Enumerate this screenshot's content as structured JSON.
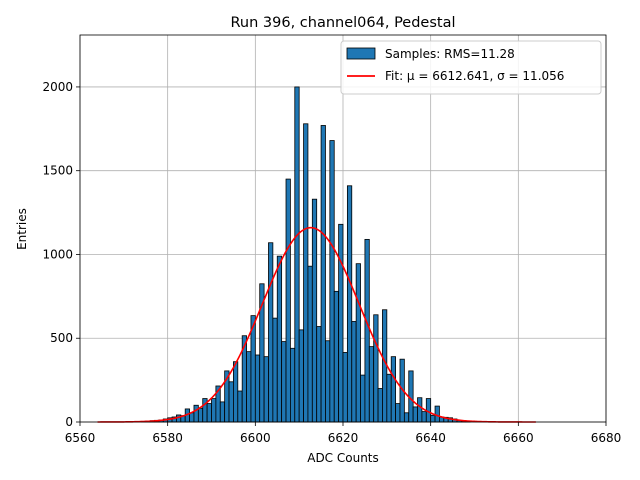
{
  "chart_data": {
    "type": "bar",
    "title": "Run 396, channel064, Pedestal",
    "xlabel": "ADC Counts",
    "ylabel": "Entries",
    "xlim": [
      6560,
      6680
    ],
    "ylim": [
      0,
      2310
    ],
    "grid": true,
    "x_ticks": [
      6560,
      6580,
      6600,
      6620,
      6640,
      6660,
      6680
    ],
    "y_ticks": [
      0,
      500,
      1000,
      1500,
      2000
    ],
    "bin_width": 1,
    "bins": [
      [
        6574,
        4
      ],
      [
        6575,
        6
      ],
      [
        6576,
        8
      ],
      [
        6577,
        10
      ],
      [
        6578,
        12
      ],
      [
        6579,
        18
      ],
      [
        6580,
        25
      ],
      [
        6581,
        30
      ],
      [
        6582,
        42
      ],
      [
        6583,
        38
      ],
      [
        6584,
        78
      ],
      [
        6585,
        55
      ],
      [
        6586,
        100
      ],
      [
        6587,
        82
      ],
      [
        6588,
        140
      ],
      [
        6589,
        110
      ],
      [
        6590,
        140
      ],
      [
        6591,
        215
      ],
      [
        6592,
        120
      ],
      [
        6593,
        305
      ],
      [
        6594,
        240
      ],
      [
        6595,
        360
      ],
      [
        6596,
        185
      ],
      [
        6597,
        515
      ],
      [
        6598,
        420
      ],
      [
        6599,
        635
      ],
      [
        6600,
        400
      ],
      [
        6601,
        825
      ],
      [
        6602,
        390
      ],
      [
        6603,
        1070
      ],
      [
        6604,
        620
      ],
      [
        6605,
        990
      ],
      [
        6606,
        480
      ],
      [
        6607,
        1450
      ],
      [
        6608,
        440
      ],
      [
        6609,
        2000
      ],
      [
        6610,
        550
      ],
      [
        6611,
        1780
      ],
      [
        6612,
        930
      ],
      [
        6613,
        1330
      ],
      [
        6614,
        570
      ],
      [
        6615,
        1770
      ],
      [
        6616,
        485
      ],
      [
        6617,
        1680
      ],
      [
        6618,
        780
      ],
      [
        6619,
        1180
      ],
      [
        6620,
        415
      ],
      [
        6621,
        1410
      ],
      [
        6622,
        600
      ],
      [
        6623,
        945
      ],
      [
        6624,
        280
      ],
      [
        6625,
        1090
      ],
      [
        6626,
        450
      ],
      [
        6627,
        640
      ],
      [
        6628,
        200
      ],
      [
        6629,
        670
      ],
      [
        6630,
        285
      ],
      [
        6631,
        390
      ],
      [
        6632,
        110
      ],
      [
        6633,
        375
      ],
      [
        6634,
        55
      ],
      [
        6635,
        305
      ],
      [
        6636,
        90
      ],
      [
        6637,
        145
      ],
      [
        6638,
        62
      ],
      [
        6639,
        140
      ],
      [
        6640,
        40
      ],
      [
        6641,
        95
      ],
      [
        6642,
        30
      ],
      [
        6643,
        28
      ],
      [
        6644,
        25
      ],
      [
        6645,
        18
      ],
      [
        6646,
        8
      ],
      [
        6647,
        6
      ],
      [
        6648,
        5
      ]
    ],
    "series": [
      {
        "name": "Samples: RMS=11.28",
        "kind": "histogram",
        "color": "#1f77b4",
        "edgecolor": "#000000"
      },
      {
        "name": "Fit: μ = 6612.641, σ = 11.056",
        "kind": "gaussian_fit",
        "mu": 6612.641,
        "sigma": 11.056,
        "amplitude": 1160,
        "x_range": [
          6564,
          6664
        ],
        "color": "#ff0000"
      }
    ],
    "legend": {
      "placement": "top-right",
      "entries": [
        "Samples: RMS=11.28",
        "Fit: μ = 6612.641, σ = 11.056"
      ]
    }
  }
}
